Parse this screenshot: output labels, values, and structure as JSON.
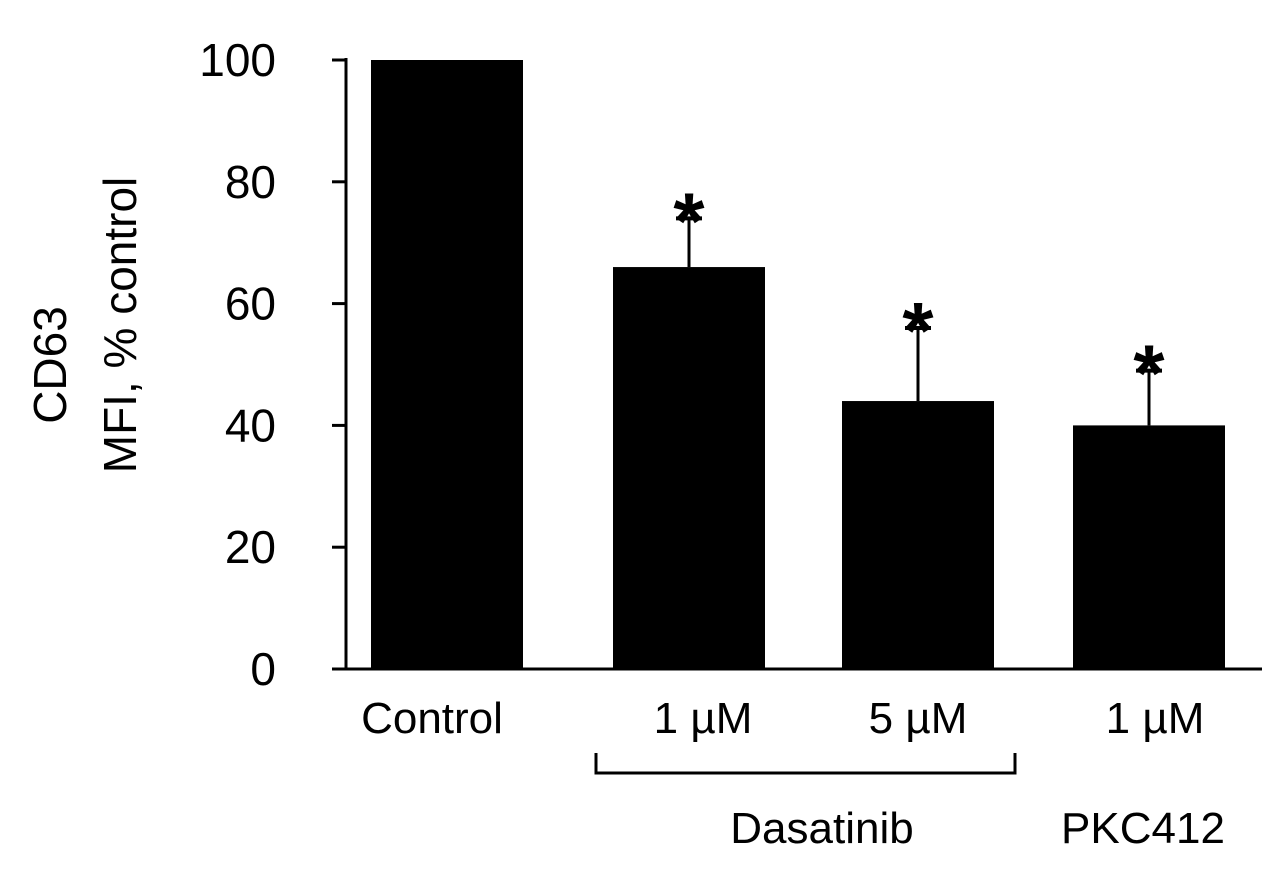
{
  "chart_data": {
    "type": "bar",
    "title": "",
    "ylabel": [
      "CD63",
      "MFI, % control"
    ],
    "xlabel": "",
    "ylim": [
      0,
      100
    ],
    "yticks": [
      0,
      20,
      40,
      60,
      80,
      100
    ],
    "categories": [
      "Control",
      "1 µM",
      "5 µM",
      "1 µM"
    ],
    "values": [
      100,
      66,
      44,
      40
    ],
    "errors": [
      0,
      8,
      12,
      9
    ],
    "significance": [
      "",
      "*",
      "*",
      "*"
    ],
    "groups": [
      {
        "label": "Dasatinib",
        "members": [
          1,
          2
        ],
        "bracket": true
      },
      {
        "label": "PKC412",
        "members": [
          3
        ],
        "bracket": false
      }
    ],
    "bar_color": "#000000",
    "grid": false
  }
}
